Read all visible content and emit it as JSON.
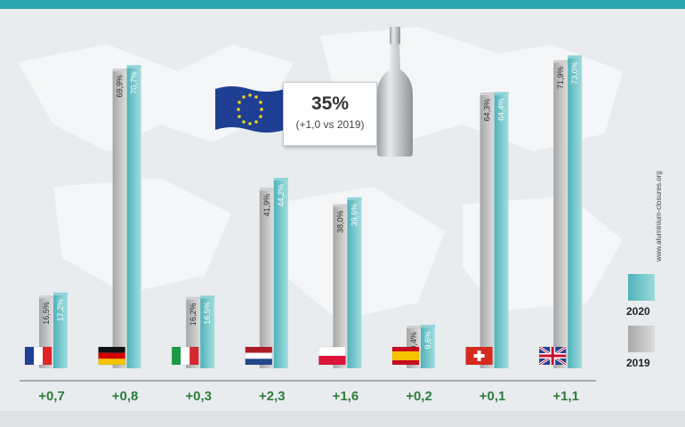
{
  "chart_data": {
    "type": "bar",
    "title": "",
    "categories": [
      "France",
      "Germany",
      "Italy",
      "Netherlands",
      "Poland",
      "Spain",
      "Switzerland",
      "United Kingdom"
    ],
    "series": [
      {
        "name": "2019",
        "values": [
          16.5,
          69.9,
          16.2,
          41.9,
          38.0,
          9.4,
          64.3,
          71.9
        ],
        "labels": [
          "16,5%",
          "69,9%",
          "16,2%",
          "41,9%",
          "38,0%",
          "9,4%",
          "64,3%",
          "71,9%"
        ]
      },
      {
        "name": "2020",
        "values": [
          17.2,
          70.7,
          16.5,
          44.2,
          39.6,
          9.6,
          64.4,
          73.0
        ],
        "labels": [
          "17,2%",
          "70,7%",
          "16,5%",
          "44,2%",
          "39,6%",
          "9,6%",
          "64,4%",
          "73,0%"
        ]
      }
    ],
    "changes": [
      "+0,7",
      "+0,8",
      "+0,3",
      "+2,3",
      "+1,6",
      "+0,2",
      "+0,1",
      "+1,1"
    ],
    "ylim": [
      0,
      100
    ],
    "grid": false,
    "legend_position": "right",
    "colors": {
      "2019": "#b9b9b9",
      "2020": "#5fc0c5",
      "change_text": "#2e7d3c"
    }
  },
  "callout": {
    "value": "35%",
    "note": "(+1,0 vs 2019)"
  },
  "website": "www.aluminium-closures.org",
  "legend": {
    "label_2020": "2020",
    "label_2019": "2019"
  }
}
